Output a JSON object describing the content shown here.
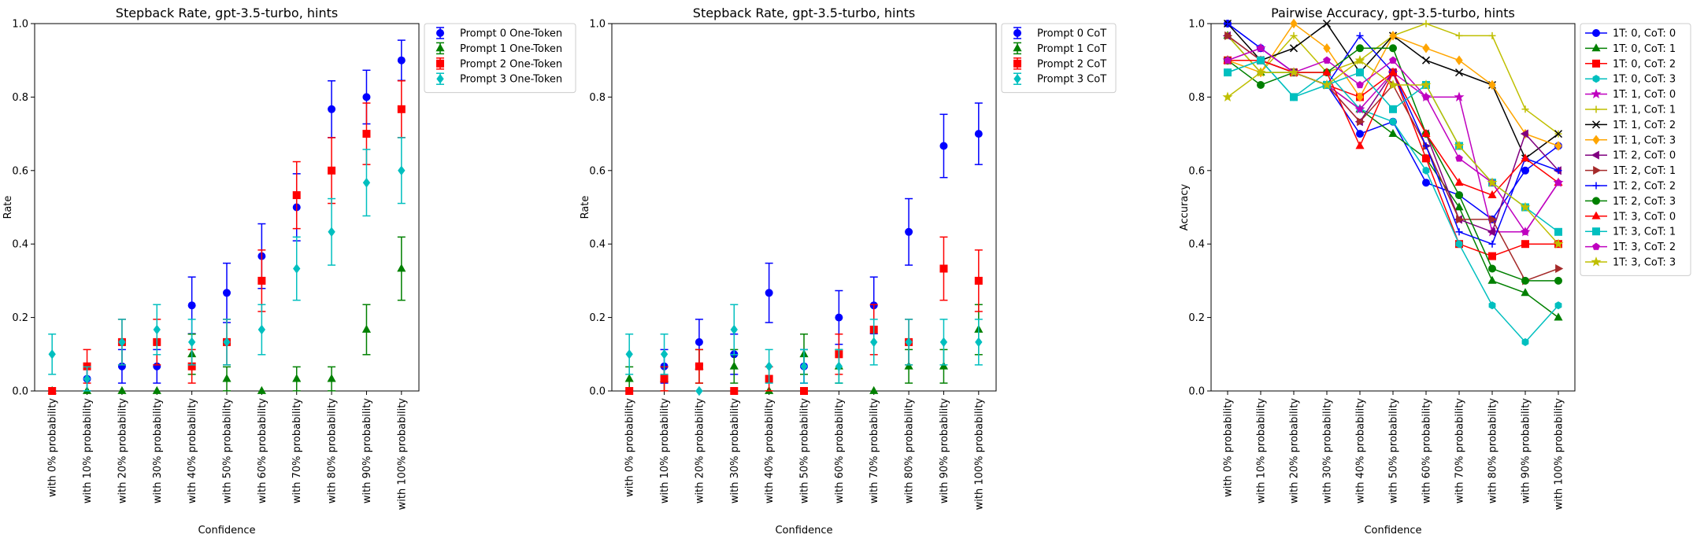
{
  "chart_data": [
    {
      "type": "scatter",
      "title": "Stepback Rate, gpt-3.5-turbo, hints",
      "xlabel": "Confidence",
      "ylabel": "Rate",
      "ylim": [
        0,
        1
      ],
      "yticks": [
        "0.0",
        "0.2",
        "0.4",
        "0.6",
        "0.8",
        "1.0"
      ],
      "categories": [
        "with 0% probability",
        "with 10% probability",
        "with 20% probability",
        "with 30% probability",
        "with 40% probability",
        "with 50% probability",
        "with 60% probability",
        "with 70% probability",
        "with 80% probability",
        "with 90% probability",
        "with 100% probability"
      ],
      "error_bars": true,
      "legend_position": "outside-top-right",
      "series": [
        {
          "name": "Prompt 0 One-Token",
          "color": "#0000ff",
          "marker": "circle",
          "values": [
            0.0,
            0.033,
            0.067,
            0.067,
            0.233,
            0.267,
            0.367,
            0.5,
            0.767,
            0.8,
            0.9
          ]
        },
        {
          "name": "Prompt 1 One-Token",
          "color": "#008000",
          "marker": "triangle-up",
          "values": [
            0.0,
            0.0,
            0.0,
            0.0,
            0.1,
            0.033,
            0.0,
            0.033,
            0.033,
            0.167,
            0.333
          ]
        },
        {
          "name": "Prompt 2 One-Token",
          "color": "#ff0000",
          "marker": "square",
          "values": [
            0.0,
            0.067,
            0.133,
            0.133,
            0.067,
            0.133,
            0.3,
            0.533,
            0.6,
            0.7,
            0.767
          ]
        },
        {
          "name": "Prompt 3 One-Token",
          "color": "#00bfbf",
          "marker": "diamond",
          "values": [
            0.1,
            0.033,
            0.133,
            0.167,
            0.133,
            0.133,
            0.167,
            0.333,
            0.433,
            0.567,
            0.6
          ]
        }
      ]
    },
    {
      "type": "scatter",
      "title": "Stepback Rate, gpt-3.5-turbo, hints",
      "xlabel": "Confidence",
      "ylabel": "Rate",
      "ylim": [
        0,
        1
      ],
      "yticks": [
        "0.0",
        "0.2",
        "0.4",
        "0.6",
        "0.8",
        "1.0"
      ],
      "categories": [
        "with 0% probability",
        "with 10% probability",
        "with 20% probability",
        "with 30% probability",
        "with 40% probability",
        "with 50% probability",
        "with 60% probability",
        "with 70% probability",
        "with 80% probability",
        "with 90% probability",
        "with 100% probability"
      ],
      "error_bars": true,
      "legend_position": "outside-top-right",
      "series": [
        {
          "name": "Prompt 0 CoT",
          "color": "#0000ff",
          "marker": "circle",
          "values": [
            0.0,
            0.067,
            0.133,
            0.1,
            0.267,
            0.067,
            0.2,
            0.233,
            0.433,
            0.667,
            0.7
          ]
        },
        {
          "name": "Prompt 1 CoT",
          "color": "#008000",
          "marker": "triangle-up",
          "values": [
            0.033,
            0.033,
            0.067,
            0.067,
            0.0,
            0.1,
            0.067,
            0.0,
            0.067,
            0.067,
            0.167
          ]
        },
        {
          "name": "Prompt 2 CoT",
          "color": "#ff0000",
          "marker": "square",
          "values": [
            0.0,
            0.033,
            0.067,
            0.0,
            0.033,
            0.0,
            0.1,
            0.167,
            0.133,
            0.333,
            0.3
          ]
        },
        {
          "name": "Prompt 3 CoT",
          "color": "#00bfbf",
          "marker": "diamond",
          "values": [
            0.1,
            0.1,
            0.0,
            0.167,
            0.067,
            0.067,
            0.067,
            0.133,
            0.133,
            0.133,
            0.133
          ]
        }
      ]
    },
    {
      "type": "line",
      "title": "Pairwise Accuracy, gpt-3.5-turbo, hints",
      "xlabel": "Confidence",
      "ylabel": "Accuracy",
      "ylim": [
        0,
        1
      ],
      "yticks": [
        "0.0",
        "0.2",
        "0.4",
        "0.6",
        "0.8",
        "1.0"
      ],
      "categories": [
        "with 0% probability",
        "with 10% probability",
        "with 20% probability",
        "with 30% probability",
        "with 40% probability",
        "with 50% probability",
        "with 60% probability",
        "with 70% probability",
        "with 80% probability",
        "with 90% probability",
        "with 100% probability"
      ],
      "legend_position": "outside-top-right",
      "series": [
        {
          "name": "1T: 0, CoT: 0",
          "color": "#0000ff",
          "marker": "circle",
          "values": [
            1.0,
            0.933,
            0.867,
            0.833,
            0.7,
            0.733,
            0.567,
            0.533,
            0.467,
            0.6,
            0.667
          ]
        },
        {
          "name": "1T: 0, CoT: 1",
          "color": "#008000",
          "marker": "triangle-up",
          "values": [
            0.967,
            0.867,
            0.867,
            0.833,
            0.767,
            0.7,
            0.633,
            0.5,
            0.3,
            0.267,
            0.2
          ]
        },
        {
          "name": "1T: 0, CoT: 2",
          "color": "#ff0000",
          "marker": "square",
          "values": [
            0.9,
            0.9,
            0.867,
            0.833,
            0.8,
            0.867,
            0.633,
            0.4,
            0.367,
            0.4,
            0.4
          ]
        },
        {
          "name": "1T: 0, CoT: 3",
          "color": "#00bfbf",
          "marker": "hexagon",
          "values": [
            0.867,
            0.9,
            0.8,
            0.867,
            0.767,
            0.733,
            0.6,
            0.4,
            0.233,
            0.133,
            0.233
          ]
        },
        {
          "name": "1T: 1, CoT: 0",
          "color": "#bf00bf",
          "marker": "star",
          "values": [
            0.9,
            0.933,
            0.867,
            0.833,
            0.767,
            0.867,
            0.8,
            0.8,
            0.433,
            0.433,
            0.567
          ]
        },
        {
          "name": "1T: 1, CoT: 1",
          "color": "#bfbf00",
          "marker": "plus",
          "values": [
            0.967,
            0.867,
            0.967,
            0.867,
            0.9,
            0.967,
            1.0,
            0.967,
            0.967,
            0.767,
            0.7
          ]
        },
        {
          "name": "1T: 1, CoT: 2",
          "color": "#000000",
          "marker": "x",
          "values": [
            1.0,
            0.9,
            0.933,
            1.0,
            0.867,
            0.967,
            0.9,
            0.867,
            0.833,
            0.633,
            0.7
          ]
        },
        {
          "name": "1T: 1, CoT: 3",
          "color": "#ffa500",
          "marker": "diamond",
          "values": [
            0.9,
            0.867,
            1.0,
            0.933,
            0.8,
            0.967,
            0.933,
            0.9,
            0.833,
            0.7,
            0.667
          ]
        },
        {
          "name": "1T: 2, CoT: 0",
          "color": "#800080",
          "marker": "triangle-left",
          "values": [
            0.967,
            0.9,
            0.867,
            0.833,
            0.733,
            0.867,
            0.7,
            0.467,
            0.433,
            0.7,
            0.6
          ]
        },
        {
          "name": "1T: 2, CoT: 1",
          "color": "#a52a2a",
          "marker": "triangle-right",
          "values": [
            0.967,
            0.9,
            0.867,
            0.833,
            0.733,
            0.833,
            0.667,
            0.467,
            0.467,
            0.3,
            0.333
          ]
        },
        {
          "name": "1T: 2, CoT: 2",
          "color": "#0000ff",
          "marker": "plus",
          "values": [
            1.0,
            0.933,
            0.867,
            0.833,
            0.967,
            0.867,
            0.667,
            0.433,
            0.4,
            0.633,
            0.6
          ]
        },
        {
          "name": "1T: 2, CoT: 3",
          "color": "#008000",
          "marker": "circle",
          "values": [
            0.9,
            0.833,
            0.867,
            0.867,
            0.933,
            0.933,
            0.7,
            0.533,
            0.333,
            0.3,
            0.3
          ]
        },
        {
          "name": "1T: 3, CoT: 0",
          "color": "#ff0000",
          "marker": "triangle-up",
          "values": [
            0.9,
            0.9,
            0.867,
            0.867,
            0.667,
            0.867,
            0.7,
            0.567,
            0.533,
            0.633,
            0.567
          ]
        },
        {
          "name": "1T: 3, CoT: 1",
          "color": "#00bfbf",
          "marker": "square",
          "values": [
            0.867,
            0.9,
            0.8,
            0.833,
            0.867,
            0.767,
            0.833,
            0.667,
            0.567,
            0.5,
            0.433
          ]
        },
        {
          "name": "1T: 3, CoT: 2",
          "color": "#bf00bf",
          "marker": "pentagon",
          "values": [
            0.9,
            0.933,
            0.867,
            0.9,
            0.833,
            0.9,
            0.8,
            0.633,
            0.567,
            0.433,
            0.567
          ]
        },
        {
          "name": "1T: 3, CoT: 3",
          "color": "#bfbf00",
          "marker": "star",
          "values": [
            0.8,
            0.867,
            0.867,
            0.833,
            0.9,
            0.833,
            0.833,
            0.667,
            0.567,
            0.5,
            0.4
          ]
        }
      ]
    }
  ]
}
